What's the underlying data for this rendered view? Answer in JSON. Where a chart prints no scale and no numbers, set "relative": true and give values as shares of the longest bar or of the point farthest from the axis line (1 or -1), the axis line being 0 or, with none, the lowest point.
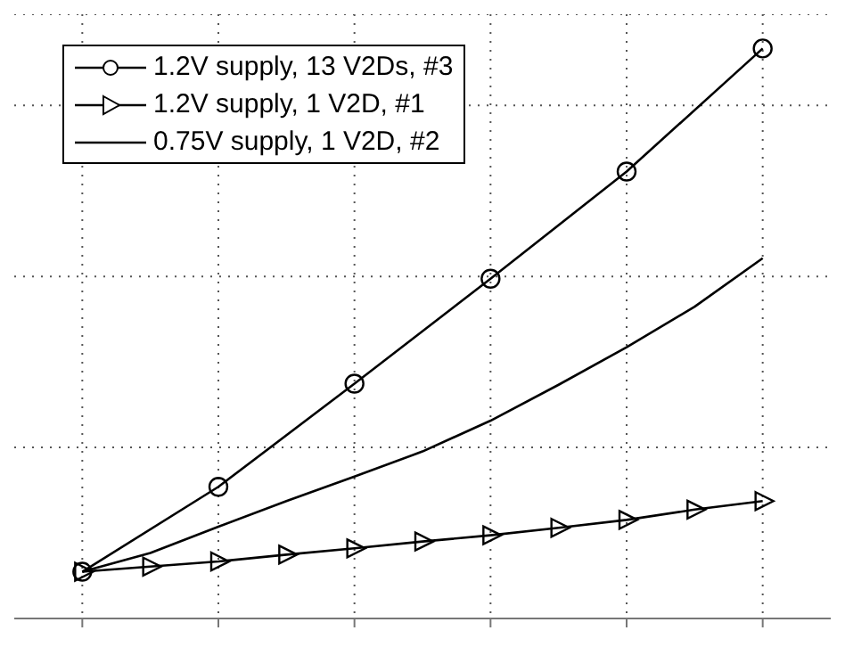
{
  "chart_data": {
    "type": "line",
    "relative": true,
    "categories": [
      null,
      null,
      null,
      null,
      null,
      null,
      null,
      null,
      null,
      null,
      null
    ],
    "tick_labels": false,
    "grid": true,
    "legend": "top left",
    "line_style": "solid",
    "series": [
      {
        "name": "1.2V supply, 13 V2Ds, #3",
        "color": "#000000",
        "marker": "circle",
        "values": [
          0.082,
          null,
          0.231,
          null,
          0.412,
          null,
          0.596,
          null,
          0.784,
          null,
          1
        ]
      },
      {
        "name": "1.2V supply, 1 V2D, #1",
        "color": "#000000",
        "marker": "triangle",
        "values": [
          0.082,
          0.091,
          0.1,
          0.112,
          0.123,
          0.135,
          0.146,
          0.159,
          0.173,
          0.191,
          0.206
        ]
      },
      {
        "name": "0.75V supply, 1 V2D, #2",
        "color": "#000000",
        "marker": "none",
        "values": [
          0.082,
          0.115,
          0.161,
          0.206,
          0.249,
          0.293,
          0.347,
          0.41,
          0.476,
          0.547,
          0.632
        ]
      }
    ]
  }
}
